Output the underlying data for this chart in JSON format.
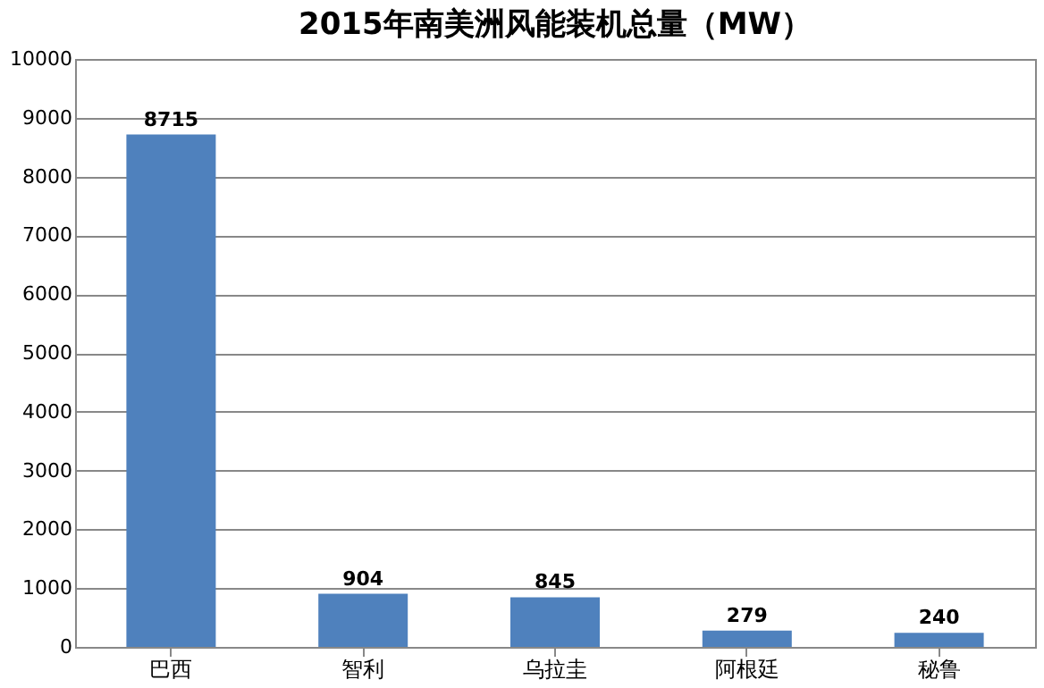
{
  "chart_data": {
    "type": "bar",
    "title": "2015年南美洲风能装机总量（MW）",
    "categories": [
      "巴西",
      "智利",
      "乌拉圭",
      "阿根廷",
      "秘鲁"
    ],
    "values": [
      8715,
      904,
      845,
      279,
      240
    ],
    "color": "#4f81bd",
    "ylim": [
      0,
      10000
    ],
    "yticks": [
      0,
      1000,
      2000,
      3000,
      4000,
      5000,
      6000,
      7000,
      8000,
      9000,
      10000
    ],
    "grid": "y",
    "data_labels": true
  }
}
